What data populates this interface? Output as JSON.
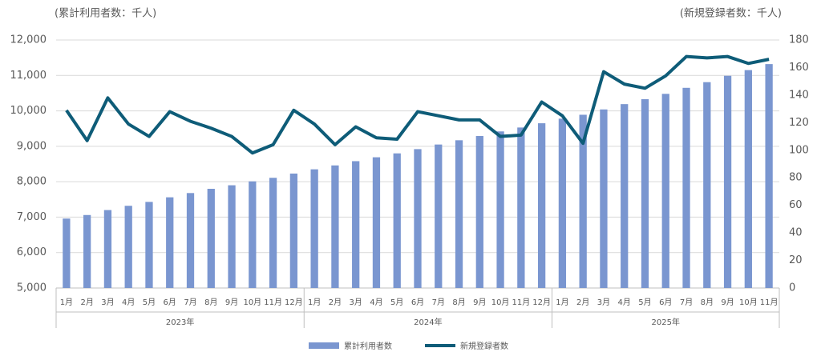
{
  "chart_data": {
    "type": "bar-line",
    "y_label": "(累計利用者数：千人)",
    "y2_label": "(新規登録者数：千人)",
    "groups": [
      {
        "name": "2023年",
        "categories": [
          "1月",
          "2月",
          "3月",
          "4月",
          "5月",
          "6月",
          "7月",
          "8月",
          "9月",
          "10月",
          "11月",
          "12月"
        ]
      },
      {
        "name": "2024年",
        "categories": [
          "1月",
          "2月",
          "3月",
          "4月",
          "5月",
          "6月",
          "7月",
          "8月",
          "9月",
          "10月",
          "11月",
          "12月"
        ]
      },
      {
        "name": "2025年",
        "categories": [
          "1月",
          "2月",
          "3月",
          "4月",
          "5月",
          "6月",
          "7月",
          "8月",
          "9月",
          "10月",
          "11月"
        ]
      }
    ],
    "series": [
      {
        "name": "累計利用者数",
        "type": "bar",
        "color": "#7a96d0",
        "values": [
          6960,
          7060,
          7200,
          7320,
          7430,
          7560,
          7680,
          7800,
          7900,
          8010,
          8110,
          8230,
          8350,
          8460,
          8580,
          8690,
          8800,
          8920,
          9050,
          9170,
          9290,
          9420,
          9530,
          9650,
          9780,
          9890,
          10040,
          10190,
          10330,
          10480,
          10650,
          10810,
          10990,
          11150,
          11320
        ]
      },
      {
        "name": "新規登録者数",
        "type": "line",
        "axis": "y2",
        "color": "#0e5c78",
        "values": [
          129,
          107,
          138,
          119,
          110,
          128,
          121,
          116,
          110,
          98,
          104,
          129,
          119,
          104,
          117,
          109,
          108,
          128,
          125,
          122,
          122,
          110,
          111,
          135,
          125,
          105,
          157,
          148,
          145,
          154,
          168,
          167,
          168,
          163,
          166
        ]
      }
    ],
    "ylim": [
      5000,
      12000
    ],
    "yticks": [
      {
        "value": 5000,
        "label": "5,000"
      },
      {
        "value": 6000,
        "label": "6,000"
      },
      {
        "value": 7000,
        "label": "7,000"
      },
      {
        "value": 8000,
        "label": "8,000"
      },
      {
        "value": 9000,
        "label": "9,000"
      },
      {
        "value": 10000,
        "label": "10,000"
      },
      {
        "value": 11000,
        "label": "11,000"
      },
      {
        "value": 12000,
        "label": "12,000"
      }
    ],
    "y2lim": [
      0,
      180
    ],
    "y2ticks": [
      0,
      20,
      40,
      60,
      80,
      100,
      120,
      140,
      160,
      180
    ],
    "grid": true,
    "legend": "bottom"
  }
}
